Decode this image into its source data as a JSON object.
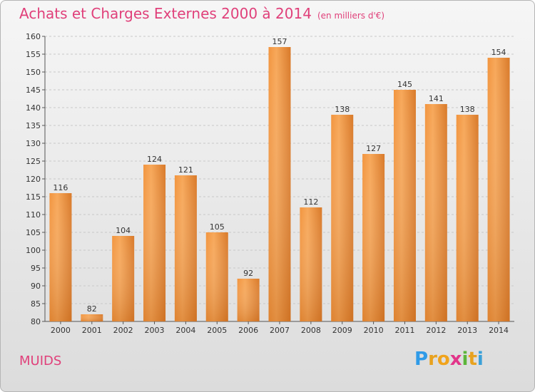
{
  "title": "Achats et Charges Externes 2000 à 2014",
  "unit": "(en milliers d'€)",
  "place": "MUIDS",
  "logo": {
    "p": "P",
    "r": "r",
    "o": "o",
    "x": "x",
    "i1": "i",
    "t": "t",
    "i2": "i"
  },
  "colors": {
    "bar_top": "#f7a85a",
    "bar_bottom": "#d4701f",
    "title": "#e0407a"
  },
  "chart_data": {
    "type": "bar",
    "title": "Achats et Charges Externes 2000 à 2014",
    "subtitle": "(en milliers d'€)",
    "categories": [
      "2000",
      "2001",
      "2002",
      "2003",
      "2004",
      "2005",
      "2006",
      "2007",
      "2008",
      "2009",
      "2010",
      "2011",
      "2012",
      "2013",
      "2014"
    ],
    "values": [
      116,
      82,
      104,
      124,
      121,
      105,
      92,
      157,
      112,
      138,
      127,
      145,
      141,
      138,
      154
    ],
    "ylim": [
      80,
      160
    ],
    "yticks": [
      80,
      85,
      90,
      95,
      100,
      105,
      110,
      115,
      120,
      125,
      130,
      135,
      140,
      145,
      150,
      155,
      160
    ],
    "grid": true,
    "xlabel": "",
    "ylabel": ""
  }
}
